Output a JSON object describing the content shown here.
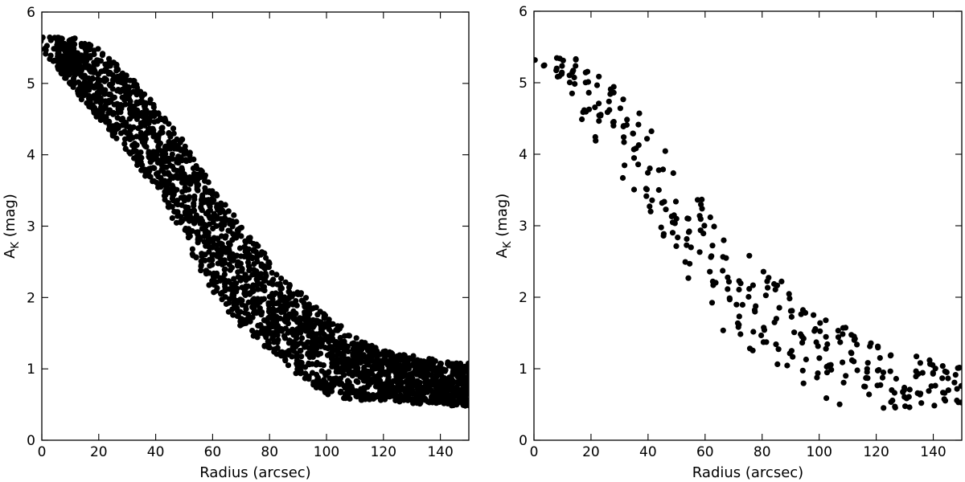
{
  "chart_data": [
    {
      "type": "scatter",
      "xlabel": "Radius (arcsec)",
      "ylabel": {
        "main": "A",
        "subscript": "K",
        "unit": " (mag)"
      },
      "xlim": [
        0,
        150
      ],
      "ylim": [
        0,
        6
      ],
      "xticks": [
        0,
        20,
        40,
        60,
        80,
        100,
        120,
        140
      ],
      "yticks": [
        0,
        1,
        2,
        3,
        4,
        5,
        6
      ],
      "marker_color": "#000000",
      "grid": false,
      "model": {
        "x_start": 0,
        "x_end": 150,
        "x_step": 1.4,
        "center": [
          [
            0,
            5.55
          ],
          [
            10,
            5.3
          ],
          [
            20,
            5.0
          ],
          [
            30,
            4.6
          ],
          [
            40,
            4.1
          ],
          [
            50,
            3.5
          ],
          [
            60,
            2.8
          ],
          [
            70,
            2.3
          ],
          [
            80,
            1.9
          ],
          [
            90,
            1.5
          ],
          [
            100,
            1.2
          ],
          [
            110,
            1.0
          ],
          [
            120,
            0.9
          ],
          [
            130,
            0.85
          ],
          [
            140,
            0.8
          ],
          [
            150,
            0.78
          ]
        ],
        "spread": [
          [
            0,
            0.1
          ],
          [
            10,
            0.35
          ],
          [
            20,
            0.5
          ],
          [
            40,
            0.6
          ],
          [
            60,
            0.75
          ],
          [
            80,
            0.65
          ],
          [
            100,
            0.55
          ],
          [
            120,
            0.35
          ],
          [
            150,
            0.3
          ]
        ],
        "points_per_column": 24
      }
    },
    {
      "type": "scatter",
      "xlabel": "Radius (arcsec)",
      "ylabel": {
        "main": "A",
        "subscript": "K",
        "unit": " (mag)"
      },
      "xlim": [
        0,
        150
      ],
      "ylim": [
        0,
        6
      ],
      "xticks": [
        0,
        20,
        40,
        60,
        80,
        100,
        120,
        140
      ],
      "yticks": [
        0,
        1,
        2,
        3,
        4,
        5,
        6
      ],
      "marker_color": "#000000",
      "grid": false,
      "model": {
        "x_start": 0,
        "x_end": 150,
        "x_step": 4.5,
        "center": [
          [
            0,
            5.32
          ],
          [
            10,
            5.2
          ],
          [
            20,
            4.8
          ],
          [
            30,
            4.3
          ],
          [
            40,
            3.8
          ],
          [
            50,
            3.1
          ],
          [
            60,
            2.6
          ],
          [
            70,
            2.1
          ],
          [
            80,
            1.8
          ],
          [
            90,
            1.5
          ],
          [
            100,
            1.2
          ],
          [
            110,
            1.0
          ],
          [
            120,
            0.9
          ],
          [
            130,
            0.85
          ],
          [
            140,
            0.8
          ],
          [
            150,
            0.78
          ]
        ],
        "spread": [
          [
            0,
            0.05
          ],
          [
            10,
            0.15
          ],
          [
            20,
            0.5
          ],
          [
            40,
            0.6
          ],
          [
            60,
            0.7
          ],
          [
            80,
            0.7
          ],
          [
            100,
            0.6
          ],
          [
            120,
            0.45
          ],
          [
            150,
            0.3
          ]
        ],
        "points_per_column": 10
      }
    }
  ]
}
